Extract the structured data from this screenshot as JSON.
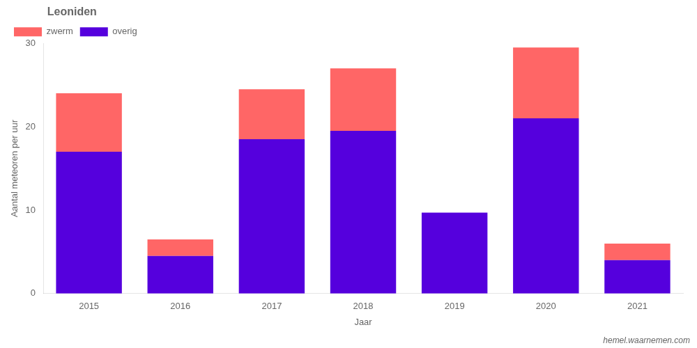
{
  "chart_data": {
    "type": "bar",
    "title": "Leoniden",
    "x_label": "Jaar",
    "y_label": "Aantal meteoren per uur",
    "categories": [
      "2015",
      "2016",
      "2017",
      "2018",
      "2019",
      "2020",
      "2021"
    ],
    "series": [
      {
        "name": "overig",
        "color": "#5500dd",
        "values": [
          17.0,
          4.5,
          18.5,
          19.5,
          9.7,
          21.0,
          4.0
        ]
      },
      {
        "name": "zwerm",
        "color": "#ff6666",
        "values": [
          7.0,
          2.0,
          6.0,
          7.5,
          0.0,
          8.5,
          2.0
        ]
      }
    ],
    "stacked": true,
    "ylim": [
      0,
      30
    ],
    "yticks": [
      0,
      10,
      20,
      30
    ],
    "grid": false,
    "legend": "upper left",
    "annotations": [
      "hemel.waarnemen.com"
    ]
  }
}
